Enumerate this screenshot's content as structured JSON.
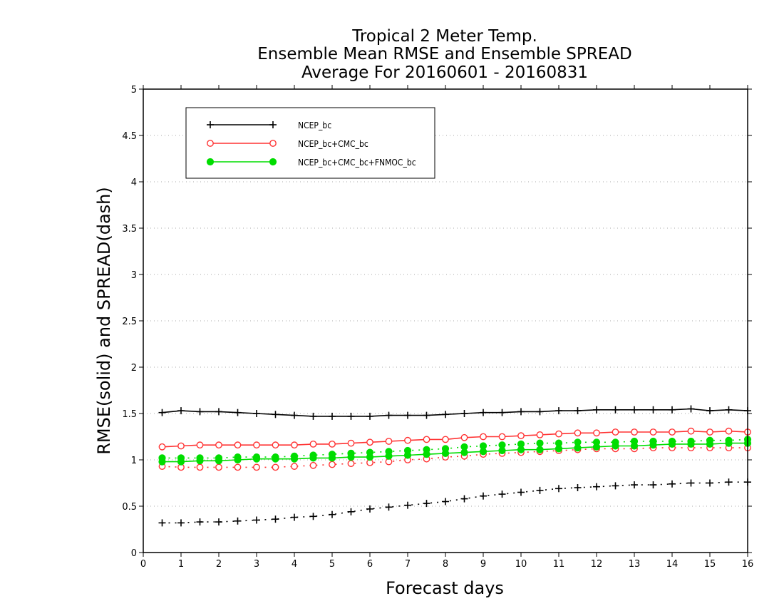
{
  "chart_data": {
    "type": "line",
    "title_lines": [
      "Tropical 2 Meter Temp.",
      "Ensemble Mean RMSE and Ensemble SPREAD",
      "Average For 20160601 - 20160831"
    ],
    "xlabel": "Forecast days",
    "ylabel": "RMSE(solid) and SPREAD(dash)",
    "xlim": [
      0,
      16
    ],
    "ylim": [
      0,
      5
    ],
    "xticks": [
      "0",
      "1",
      "2",
      "3",
      "4",
      "5",
      "6",
      "7",
      "8",
      "9",
      "10",
      "11",
      "12",
      "13",
      "14",
      "15",
      "16"
    ],
    "yticks": [
      "0",
      "0.5",
      "1",
      "1.5",
      "2",
      "2.5",
      "3",
      "3.5",
      "4",
      "4.5",
      "5"
    ],
    "grid": "horizontal dotted",
    "legend_position": "top-left",
    "x": [
      0.5,
      1,
      1.5,
      2,
      2.5,
      3,
      3.5,
      4,
      4.5,
      5,
      5.5,
      6,
      6.5,
      7,
      7.5,
      8,
      8.5,
      9,
      9.5,
      10,
      10.5,
      11,
      11.5,
      12,
      12.5,
      13,
      13.5,
      14,
      14.5,
      15,
      15.5,
      16
    ],
    "series": [
      {
        "name": "NCEP_bc",
        "color": "#000000",
        "marker": "plus",
        "rmse": [
          1.51,
          1.53,
          1.52,
          1.52,
          1.51,
          1.5,
          1.49,
          1.48,
          1.47,
          1.47,
          1.47,
          1.47,
          1.48,
          1.48,
          1.48,
          1.49,
          1.5,
          1.51,
          1.51,
          1.52,
          1.52,
          1.53,
          1.53,
          1.54,
          1.54,
          1.54,
          1.54,
          1.54,
          1.55,
          1.53,
          1.54,
          1.53
        ],
        "spread": [
          0.32,
          0.32,
          0.33,
          0.33,
          0.34,
          0.35,
          0.36,
          0.38,
          0.39,
          0.41,
          0.44,
          0.47,
          0.49,
          0.51,
          0.53,
          0.55,
          0.58,
          0.61,
          0.63,
          0.65,
          0.67,
          0.69,
          0.7,
          0.71,
          0.72,
          0.73,
          0.73,
          0.74,
          0.75,
          0.75,
          0.76,
          0.76
        ]
      },
      {
        "name": "NCEP_bc+CMC_bc",
        "color": "#ff3333",
        "marker": "open-circle",
        "rmse": [
          1.14,
          1.15,
          1.16,
          1.16,
          1.16,
          1.16,
          1.16,
          1.16,
          1.17,
          1.17,
          1.18,
          1.19,
          1.2,
          1.21,
          1.22,
          1.22,
          1.24,
          1.25,
          1.25,
          1.26,
          1.27,
          1.28,
          1.29,
          1.29,
          1.3,
          1.3,
          1.3,
          1.3,
          1.31,
          1.3,
          1.31,
          1.3
        ],
        "spread": [
          0.93,
          0.92,
          0.92,
          0.92,
          0.92,
          0.92,
          0.92,
          0.93,
          0.94,
          0.95,
          0.96,
          0.97,
          0.98,
          1.0,
          1.01,
          1.03,
          1.04,
          1.06,
          1.07,
          1.08,
          1.09,
          1.1,
          1.11,
          1.12,
          1.12,
          1.12,
          1.13,
          1.13,
          1.13,
          1.13,
          1.13,
          1.13
        ]
      },
      {
        "name": "NCEP_bc+CMC_bc+FNMOC_bc",
        "color": "#00dd00",
        "marker": "filled-circle",
        "rmse": [
          0.98,
          0.98,
          0.99,
          0.99,
          1.0,
          1.01,
          1.01,
          1.01,
          1.02,
          1.02,
          1.03,
          1.03,
          1.04,
          1.05,
          1.06,
          1.07,
          1.08,
          1.09,
          1.1,
          1.11,
          1.11,
          1.12,
          1.13,
          1.14,
          1.15,
          1.15,
          1.16,
          1.17,
          1.17,
          1.17,
          1.18,
          1.18
        ],
        "spread": [
          1.02,
          1.02,
          1.02,
          1.02,
          1.03,
          1.03,
          1.03,
          1.04,
          1.05,
          1.06,
          1.07,
          1.08,
          1.09,
          1.1,
          1.11,
          1.12,
          1.14,
          1.15,
          1.16,
          1.17,
          1.18,
          1.18,
          1.19,
          1.19,
          1.19,
          1.2,
          1.2,
          1.2,
          1.2,
          1.21,
          1.21,
          1.22
        ]
      }
    ]
  }
}
